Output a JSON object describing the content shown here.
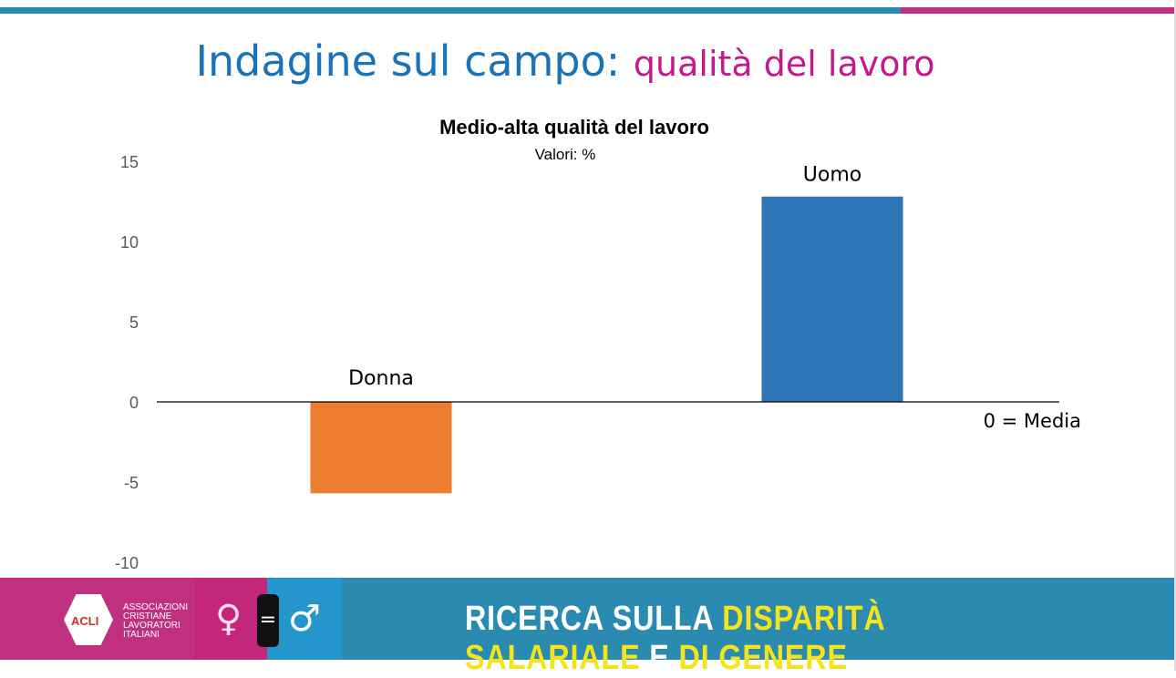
{
  "header": {
    "title_main": "Indagine sul campo:",
    "title_sub": "qualità del lavoro"
  },
  "chart_data": {
    "type": "bar",
    "title": "Medio-alta qualità del lavoro",
    "subtitle": "Valori: %",
    "categories": [
      "Donna",
      "Uomo"
    ],
    "values": [
      -5.7,
      12.8
    ],
    "colors": [
      "#ed7d31",
      "#2e75b6"
    ],
    "ylim": [
      -10,
      15
    ],
    "yticks": [
      15,
      10,
      5,
      0,
      -5,
      -10
    ],
    "annotation": "0 = Media",
    "grid": false
  },
  "footer": {
    "org_abbr": "ACLI",
    "org_name": [
      "ASSOCIAZIONI",
      "CRISTIANE",
      "LAVORATORI",
      "ITALIANI"
    ],
    "female_symbol": "♀",
    "equals": "=",
    "male_symbol": "♂",
    "slogan_1": "RICERCA  SULLA ",
    "slogan_2": "DISPARITÀ SALARIALE",
    "slogan_3": " E ",
    "slogan_4": "DI GENERE"
  }
}
